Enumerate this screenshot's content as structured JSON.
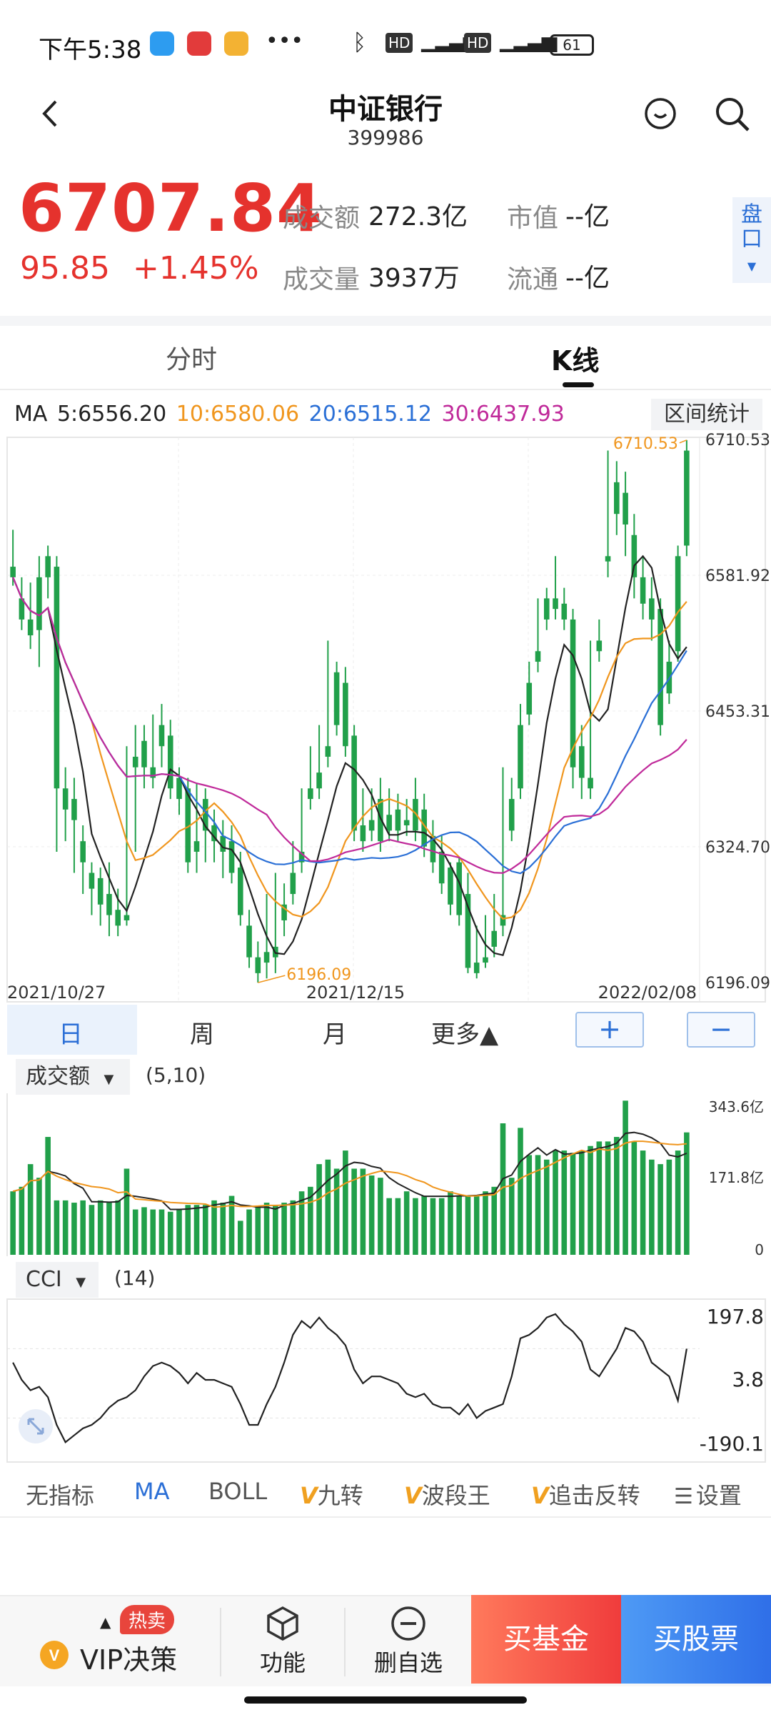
{
  "status_bar": {
    "time": "下午5:38",
    "icons": [
      "bluetooth-icon",
      "hd-icon",
      "4g-icon",
      "signal-icon",
      "hd-icon",
      "4g-icon",
      "signal-icon"
    ],
    "battery": "61"
  },
  "nav": {
    "title": "中证银行",
    "code": "399986"
  },
  "quote": {
    "price": "6707.84",
    "change": "95.85",
    "change_pct": "+1.45%",
    "turnover_label": "成交额",
    "turnover_value": "272.3亿",
    "volume_label": "成交量",
    "volume_value": "3937万",
    "market_cap_label": "市值",
    "market_cap_value": "--亿",
    "float_label": "流通",
    "float_value": "--亿",
    "pankou_label": "盘口"
  },
  "tabs": {
    "intraday": "分时",
    "kline": "K线"
  },
  "ma_legend": {
    "prefix": "MA",
    "ma5": "5:6556.20",
    "ma10": "10:6580.06",
    "ma20": "20:6515.12",
    "ma30": "30:6437.93",
    "range_stat": "区间统计"
  },
  "colors": {
    "up": "#d6202a",
    "down": "#21a04a",
    "ma5": "#222222",
    "ma10": "#f0961e",
    "ma20": "#2a6fd6",
    "ma30": "#c02a9a"
  },
  "chart_data": {
    "type": "candlestick",
    "y_ticks": [
      "6710.53",
      "6581.92",
      "6453.31",
      "6324.70",
      "6196.09"
    ],
    "ylim": [
      6196.09,
      6710.53
    ],
    "x_ticks": [
      "2021/10/27",
      "2021/12/15",
      "2022/02/08"
    ],
    "max_label": "6710.53",
    "min_label": "6196.09",
    "candles": [
      [
        6590,
        6625,
        6580,
        6572
      ],
      [
        6560,
        6580,
        6540,
        6530
      ],
      [
        6540,
        6575,
        6525,
        6512
      ],
      [
        6580,
        6600,
        6530,
        6495
      ],
      [
        6600,
        6610,
        6580,
        6560
      ],
      [
        6590,
        6600,
        6380,
        6320
      ],
      [
        6380,
        6400,
        6360,
        6330
      ],
      [
        6370,
        6390,
        6350,
        6300
      ],
      [
        6330,
        6345,
        6310,
        6280
      ],
      [
        6300,
        6310,
        6285,
        6260
      ],
      [
        6295,
        6305,
        6270,
        6250
      ],
      [
        6280,
        6310,
        6260,
        6240
      ],
      [
        6265,
        6285,
        6250,
        6240
      ],
      [
        6260,
        6420,
        6255,
        6250
      ],
      [
        6410,
        6440,
        6400,
        6320
      ],
      [
        6425,
        6440,
        6400,
        6380
      ],
      [
        6400,
        6450,
        6390,
        6380
      ],
      [
        6440,
        6460,
        6420,
        6400
      ],
      [
        6430,
        6445,
        6380,
        6370
      ],
      [
        6390,
        6400,
        6370,
        6355
      ],
      [
        6380,
        6390,
        6310,
        6300
      ],
      [
        6330,
        6385,
        6320,
        6300
      ],
      [
        6370,
        6380,
        6340,
        6310
      ],
      [
        6345,
        6360,
        6330,
        6310
      ],
      [
        6335,
        6350,
        6320,
        6295
      ],
      [
        6330,
        6345,
        6300,
        6290
      ],
      [
        6305,
        6320,
        6260,
        6250
      ],
      [
        6250,
        6265,
        6220,
        6210
      ],
      [
        6220,
        6235,
        6205,
        6196
      ],
      [
        6225,
        6280,
        6215,
        6200
      ],
      [
        6230,
        6300,
        6220,
        6205
      ],
      [
        6270,
        6290,
        6255,
        6240
      ],
      [
        6300,
        6330,
        6280,
        6270
      ],
      [
        6320,
        6380,
        6310,
        6300
      ],
      [
        6380,
        6420,
        6370,
        6360
      ],
      [
        6395,
        6440,
        6380,
        6370
      ],
      [
        6420,
        6520,
        6410,
        6400
      ],
      [
        6490,
        6500,
        6440,
        6430
      ],
      [
        6480,
        6495,
        6420,
        6410
      ],
      [
        6430,
        6440,
        6340,
        6330
      ],
      [
        6345,
        6380,
        6330,
        6320
      ],
      [
        6350,
        6380,
        6340,
        6330
      ],
      [
        6370,
        6390,
        6330,
        6320
      ],
      [
        6355,
        6380,
        6340,
        6330
      ],
      [
        6360,
        6375,
        6340,
        6330
      ],
      [
        6350,
        6370,
        6345,
        6335
      ],
      [
        6370,
        6390,
        6340,
        6330
      ],
      [
        6360,
        6375,
        6325,
        6315
      ],
      [
        6335,
        6350,
        6310,
        6300
      ],
      [
        6320,
        6335,
        6290,
        6280
      ],
      [
        6305,
        6310,
        6270,
        6260
      ],
      [
        6310,
        6315,
        6260,
        6250
      ],
      [
        6280,
        6300,
        6210,
        6205
      ],
      [
        6215,
        6250,
        6205,
        6200
      ],
      [
        6220,
        6260,
        6215,
        6210
      ],
      [
        6245,
        6280,
        6230,
        6220
      ],
      [
        6260,
        6400,
        6250,
        6240
      ],
      [
        6370,
        6390,
        6340,
        6330
      ],
      [
        6440,
        6460,
        6380,
        6370
      ],
      [
        6480,
        6500,
        6450,
        6440
      ],
      [
        6510,
        6560,
        6500,
        6490
      ],
      [
        6560,
        6570,
        6540,
        6530
      ],
      [
        6560,
        6600,
        6550,
        6540
      ],
      [
        6555,
        6570,
        6540,
        6530
      ],
      [
        6540,
        6550,
        6400,
        6380
      ],
      [
        6420,
        6440,
        6390,
        6370
      ],
      [
        6390,
        6520,
        6380,
        6370
      ],
      [
        6520,
        6540,
        6510,
        6500
      ],
      [
        6600,
        6700,
        6595,
        6580
      ],
      [
        6670,
        6690,
        6640,
        6620
      ],
      [
        6660,
        6680,
        6630,
        6600
      ],
      [
        6620,
        6640,
        6580,
        6560
      ],
      [
        6580,
        6600,
        6555,
        6540
      ],
      [
        6560,
        6580,
        6540,
        6520
      ],
      [
        6550,
        6560,
        6440,
        6430
      ],
      [
        6500,
        6520,
        6470,
        6460
      ],
      [
        6600,
        6610,
        6510,
        6500
      ],
      [
        6700,
        6710,
        6610,
        6600
      ]
    ]
  },
  "periods": {
    "day": "日",
    "week": "周",
    "month": "月",
    "more": "更多▲",
    "zoom_in": "+",
    "zoom_out": "−"
  },
  "volume": {
    "label": "成交额",
    "params": "(5,10)",
    "y_ticks": [
      "343.6亿",
      "171.8亿",
      "0"
    ],
    "ylim": [
      0,
      343.6
    ],
    "bars": [
      140,
      150,
      200,
      170,
      260,
      120,
      120,
      115,
      120,
      110,
      120,
      115,
      120,
      190,
      100,
      105,
      100,
      100,
      95,
      100,
      110,
      110,
      110,
      120,
      115,
      130,
      75,
      100,
      105,
      115,
      110,
      115,
      120,
      140,
      150,
      200,
      210,
      190,
      230,
      190,
      190,
      175,
      170,
      125,
      125,
      140,
      125,
      130,
      125,
      125,
      140,
      130,
      130,
      130,
      140,
      150,
      290,
      170,
      280,
      220,
      220,
      210,
      230,
      230,
      225,
      230,
      240,
      250,
      250,
      260,
      340,
      250,
      230,
      210,
      200,
      210,
      230,
      270
    ]
  },
  "cci": {
    "label": "CCI",
    "params": "(14)",
    "y_ticks": [
      "197.8",
      "3.8",
      "-190.1"
    ],
    "ylim": [
      -190.1,
      197.8
    ],
    "values": [
      60,
      10,
      -20,
      -10,
      -40,
      -120,
      -170,
      -150,
      -130,
      -120,
      -100,
      -70,
      -50,
      -40,
      -20,
      20,
      50,
      60,
      50,
      30,
      0,
      30,
      10,
      10,
      0,
      -10,
      -60,
      -120,
      -120,
      -60,
      -10,
      60,
      140,
      180,
      160,
      190,
      160,
      140,
      110,
      40,
      0,
      20,
      20,
      10,
      0,
      -30,
      -40,
      -30,
      -60,
      -70,
      -70,
      -90,
      -60,
      -100,
      -80,
      -70,
      -60,
      20,
      130,
      140,
      160,
      190,
      200,
      170,
      150,
      120,
      40,
      20,
      60,
      100,
      160,
      150,
      120,
      60,
      40,
      20,
      -50,
      100
    ]
  },
  "indicators": {
    "none": "无指标",
    "ma": "MA",
    "boll": "BOLL",
    "jiuzhuan": "九转",
    "boduanwang": "波段王",
    "zhuiji": "追击反转",
    "settings": "设置",
    "v_mark": "V"
  },
  "bottom": {
    "hot_badge": "热卖",
    "vip": "VIP决策",
    "function": "功能",
    "remove_watch": "删自选",
    "buy_fund": "买基金",
    "buy_stock": "买股票"
  }
}
